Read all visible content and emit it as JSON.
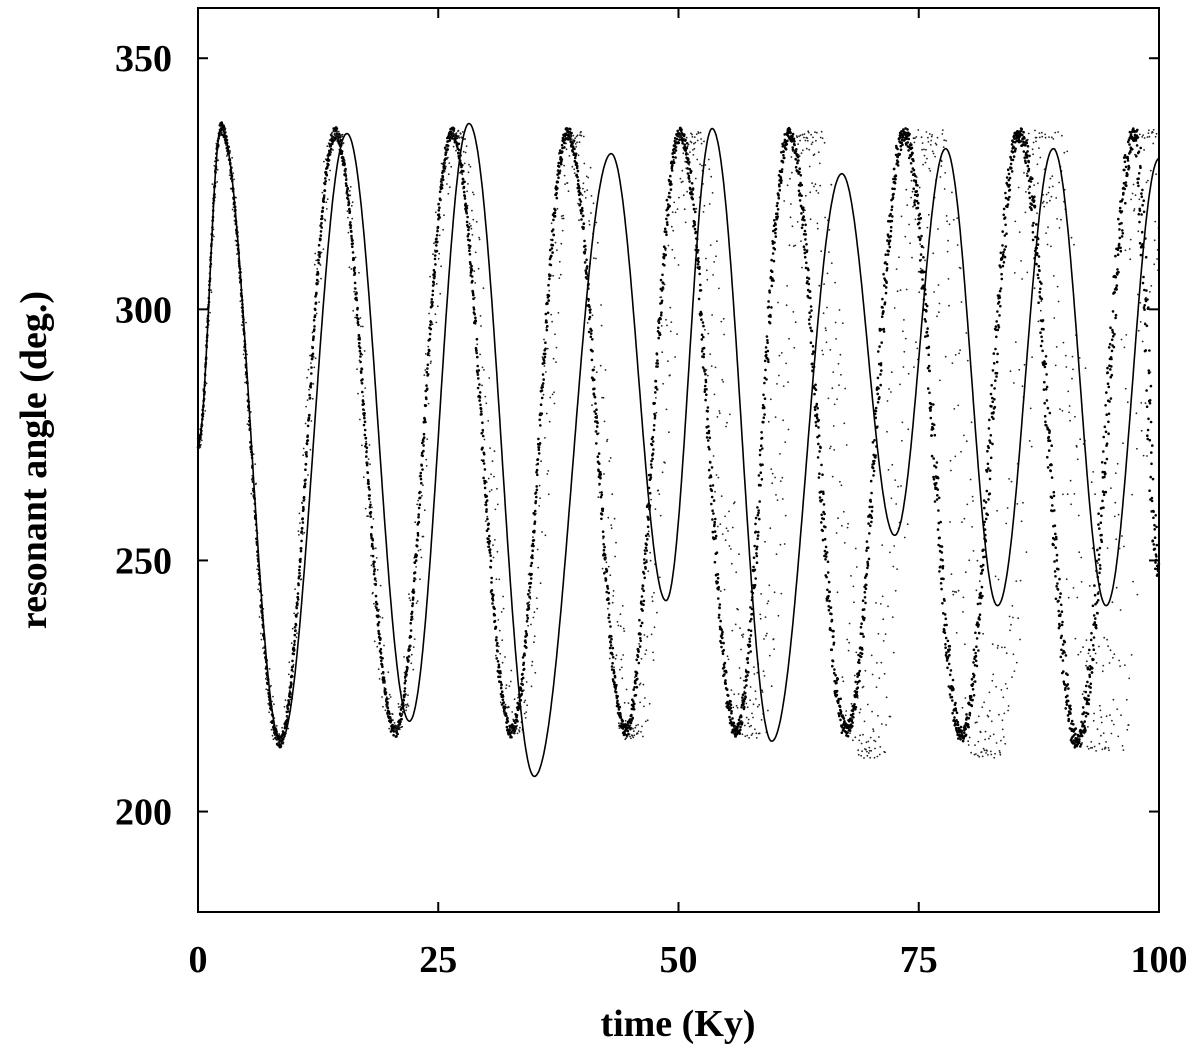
{
  "chart_data": {
    "type": "scatter",
    "title": "",
    "xlabel": "time (Ky)",
    "ylabel": "resonant angle (deg.)",
    "xlim": [
      0,
      100
    ],
    "ylim": [
      180,
      360
    ],
    "x_ticks": [
      0,
      25,
      50,
      75,
      100
    ],
    "x_tick_labels": [
      "0",
      "25",
      "50",
      "75",
      "100"
    ],
    "y_ticks": [
      200,
      250,
      300,
      350
    ],
    "y_tick_labels": [
      "200",
      "250",
      "300",
      "350"
    ],
    "grid": false,
    "legend": "none",
    "colors": {
      "marks": "#000000",
      "background": "#ffffff"
    },
    "series": [
      {
        "style": "dense dots (thick band)",
        "x": [
          0,
          2.4,
          8.5,
          14.3,
          20.5,
          26.5,
          32.6,
          38.5,
          44.5,
          50.2,
          56.0,
          61.5,
          67.5,
          73.5,
          79.5,
          85.5,
          91.5,
          97.5,
          100
        ],
        "y": [
          273,
          336,
          214,
          335,
          216,
          335,
          216,
          335,
          216,
          335,
          216,
          335,
          216,
          335,
          215,
          335,
          214,
          335,
          248
        ]
      },
      {
        "style": "sparse dots (spreading band)",
        "x": [
          0,
          2.4,
          8.5,
          14.3,
          20.5,
          26.8,
          33.2,
          39.0,
          45.2,
          51.2,
          57.5,
          63.5,
          69.8,
          76.0,
          82.2,
          88.2,
          94.2,
          100
        ],
        "y": [
          273,
          336,
          214,
          335,
          216,
          335,
          216,
          335,
          215,
          335,
          215,
          335,
          211,
          335,
          211,
          335,
          212,
          335
        ]
      },
      {
        "style": "thin solid line",
        "x": [
          0,
          2.4,
          8.6,
          15.5,
          22.0,
          28.2,
          35.0,
          43.0,
          48.7,
          53.5,
          59.7,
          67.0,
          72.5,
          77.8,
          83.2,
          89.0,
          94.5,
          100
        ],
        "y": [
          273,
          336,
          214,
          335,
          218,
          337,
          207,
          331,
          242,
          336,
          214,
          327,
          255,
          332,
          241,
          332,
          241,
          330
        ]
      }
    ]
  }
}
